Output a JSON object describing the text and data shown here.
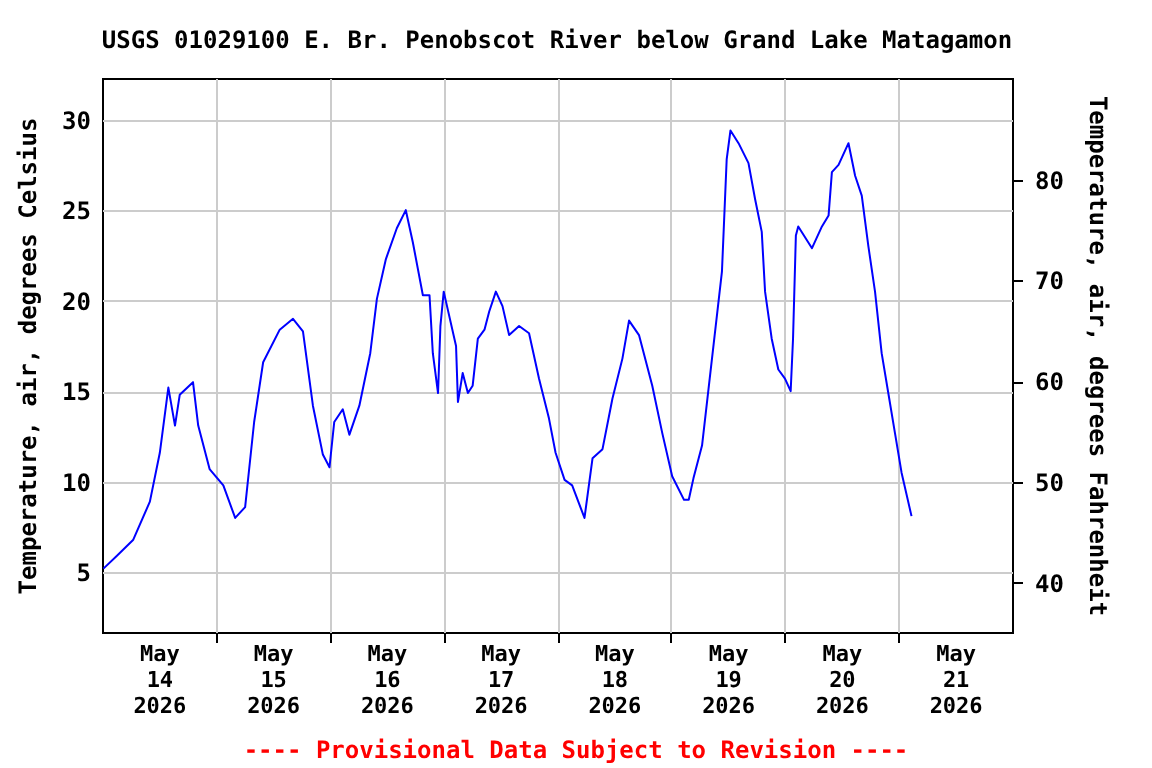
{
  "chart_data": {
    "type": "line",
    "title": "USGS 01029100 E. Br. Penobscot River below Grand Lake Matagamon",
    "ylabel": "Temperature, air, degrees Celsius",
    "y2label": "Temperature, air, degrees Fahrenheit",
    "annotations": [
      "---- Provisional Data Subject to Revision ----"
    ],
    "xlim": [
      "2026-05-14T00:00",
      "2026-05-22T00:00"
    ],
    "xticks": [
      {
        "value": "2026-05-14T12:00",
        "label": "May 14 2026"
      },
      {
        "value": "2026-05-15T00:00",
        "label": null
      },
      {
        "value": "2026-05-15T12:00",
        "label": "May 15 2026"
      },
      {
        "value": "2026-05-16T00:00",
        "label": null
      },
      {
        "value": "2026-05-16T12:00",
        "label": "May 16 2026"
      },
      {
        "value": "2026-05-17T00:00",
        "label": null
      },
      {
        "value": "2026-05-17T12:00",
        "label": "May 17 2026"
      },
      {
        "value": "2026-05-18T00:00",
        "label": null
      },
      {
        "value": "2026-05-18T12:00",
        "label": "May 18 2026"
      },
      {
        "value": "2026-05-19T00:00",
        "label": null
      },
      {
        "value": "2026-05-19T12:00",
        "label": "May 19 2026"
      },
      {
        "value": "2026-05-20T00:00",
        "label": null
      },
      {
        "value": "2026-05-20T12:00",
        "label": "May 20 2026"
      },
      {
        "value": "2026-05-21T00:00",
        "label": null
      },
      {
        "value": "2026-05-21T12:00",
        "label": "May 21 2026"
      }
    ],
    "ylim": [
      1.7,
      32.3
    ],
    "yticks": [
      5,
      10,
      15,
      20,
      25,
      30
    ],
    "y2lim": [
      35.1,
      90.1
    ],
    "y2ticks": [
      40,
      50,
      60,
      70,
      80
    ],
    "grid": true,
    "legend": false,
    "x": [
      "2026-05-14T00:18",
      "2026-05-14T03:06",
      "2026-05-14T06:36",
      "2026-05-14T10:06",
      "2026-05-14T12:12",
      "2026-05-14T13:36",
      "2026-05-14T14:00",
      "2026-05-14T15:24",
      "2026-05-14T16:24",
      "2026-05-14T19:12",
      "2026-05-14T20:18",
      "2026-05-14T22:42",
      "2026-05-15T01:36",
      "2026-05-15T04:06",
      "2026-05-15T06:12",
      "2026-05-15T08:06",
      "2026-05-15T10:00",
      "2026-05-15T13:30",
      "2026-05-15T16:18",
      "2026-05-15T18:24",
      "2026-05-15T20:30",
      "2026-05-15T22:36",
      "2026-05-16T00:00",
      "2026-05-16T01:00",
      "2026-05-16T02:48",
      "2026-05-16T04:12",
      "2026-05-16T06:18",
      "2026-05-16T08:36",
      "2026-05-16T10:00",
      "2026-05-16T11:54",
      "2026-05-16T14:12",
      "2026-05-16T16:06",
      "2026-05-16T17:36",
      "2026-05-16T19:42",
      "2026-05-16T21:06",
      "2026-05-16T21:48",
      "2026-05-16T22:54",
      "2026-05-16T23:24",
      "2026-05-17T00:06",
      "2026-05-17T02:42",
      "2026-05-17T03:06",
      "2026-05-17T04:06",
      "2026-05-17T05:12",
      "2026-05-17T06:12",
      "2026-05-17T07:18",
      "2026-05-17T08:42",
      "2026-05-17T09:42",
      "2026-05-17T11:06",
      "2026-05-17T12:30",
      "2026-05-17T13:54",
      "2026-05-17T16:00",
      "2026-05-17T18:06",
      "2026-05-17T20:12",
      "2026-05-17T22:18",
      "2026-05-17T23:42",
      "2026-05-18T01:36",
      "2026-05-18T03:12",
      "2026-05-18T05:48",
      "2026-05-18T07:30",
      "2026-05-18T09:36",
      "2026-05-18T11:42",
      "2026-05-18T13:48",
      "2026-05-18T15:12",
      "2026-05-18T17:18",
      "2026-05-18T20:06",
      "2026-05-18T22:12",
      "2026-05-19T00:18",
      "2026-05-19T02:48",
      "2026-05-19T03:48",
      "2026-05-19T04:48",
      "2026-05-19T06:36",
      "2026-05-19T08:42",
      "2026-05-19T10:48",
      "2026-05-19T11:48",
      "2026-05-19T12:36",
      "2026-05-19T14:18",
      "2026-05-19T16:24",
      "2026-05-19T17:48",
      "2026-05-19T19:12",
      "2026-05-19T19:54",
      "2026-05-19T21:18",
      "2026-05-19T22:42",
      "2026-05-20T00:06",
      "2026-05-20T01:18",
      "2026-05-20T01:48",
      "2026-05-20T02:24",
      "2026-05-20T02:54",
      "2026-05-20T05:48",
      "2026-05-20T07:54",
      "2026-05-20T09:18",
      "2026-05-20T10:00",
      "2026-05-20T11:24",
      "2026-05-20T13:30",
      "2026-05-20T14:54",
      "2026-05-20T16:18",
      "2026-05-20T17:42",
      "2026-05-20T19:06",
      "2026-05-20T20:30",
      "2026-05-20T21:54",
      "2026-05-20T23:18",
      "2026-05-21T00:42",
      "2026-05-21T02:48"
    ],
    "series": [
      {
        "color": "#0000ff",
        "values": [
          5.2,
          5.9,
          6.8,
          8.9,
          11.6,
          14.4,
          15.2,
          13.1,
          14.8,
          15.5,
          13.1,
          10.7,
          9.8,
          8.0,
          8.6,
          13.3,
          16.6,
          18.4,
          19.0,
          18.3,
          14.2,
          11.5,
          10.8,
          13.3,
          14.0,
          12.6,
          14.2,
          17.1,
          20.1,
          22.3,
          24.0,
          25.0,
          23.2,
          20.3,
          20.3,
          17.1,
          14.9,
          18.6,
          20.5,
          17.5,
          14.4,
          16.0,
          14.9,
          15.3,
          17.9,
          18.4,
          19.4,
          20.5,
          19.7,
          18.1,
          18.6,
          18.2,
          15.7,
          13.5,
          11.6,
          10.1,
          9.8,
          8.0,
          11.3,
          11.8,
          14.6,
          16.8,
          18.9,
          18.1,
          15.3,
          12.7,
          10.3,
          9.0,
          9.0,
          10.2,
          12.0,
          16.8,
          21.6,
          27.8,
          29.4,
          28.7,
          27.6,
          25.6,
          23.8,
          20.5,
          17.9,
          16.2,
          15.7,
          15.0,
          17.9,
          23.6,
          24.1,
          22.9,
          24.1,
          24.7,
          27.1,
          27.5,
          28.7,
          26.9,
          25.8,
          23.0,
          20.5,
          17.1,
          14.9,
          12.7,
          10.5,
          8.1
        ]
      }
    ]
  }
}
